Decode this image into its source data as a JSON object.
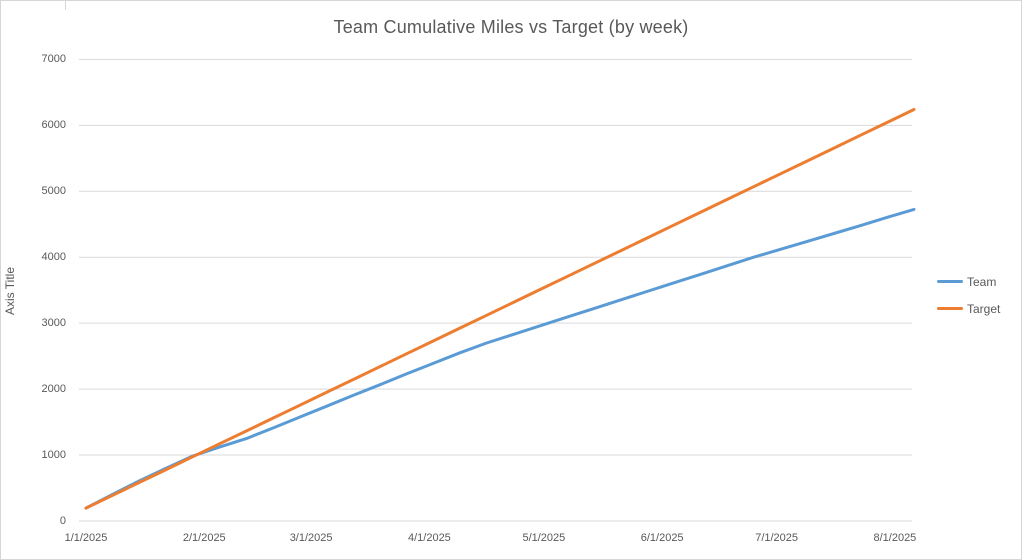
{
  "frame": {
    "background": "#FFFFFF",
    "border_color": "#D6D6D6",
    "gridline_color": "#D9D9D9",
    "text_color": "#595959"
  },
  "chart_data": {
    "type": "line",
    "title": "Team Cumulative Miles vs Target (by week)",
    "xlabel": "",
    "ylabel": "Axis Title",
    "ylim": [
      0,
      7000
    ],
    "y_tick_step": 1000,
    "y_tick_labels": [
      "0",
      "1000",
      "2000",
      "3000",
      "4000",
      "5000",
      "6000",
      "7000"
    ],
    "grid": "horizontal",
    "legend_position": "right",
    "x_tick_labels": [
      "1/1/2025",
      "2/1/2025",
      "3/1/2025",
      "4/1/2025",
      "5/1/2025",
      "6/1/2025",
      "7/1/2025",
      "8/1/2025"
    ],
    "x_tick_days": [
      0,
      31,
      59,
      90,
      120,
      151,
      181,
      212
    ],
    "x_axis_max_day": 217,
    "x_step_days": 7,
    "x": [
      "1/1/2025",
      "1/8/2025",
      "1/15/2025",
      "1/22/2025",
      "1/29/2025",
      "2/5/2025",
      "2/12/2025",
      "2/19/2025",
      "2/26/2025",
      "3/5/2025",
      "3/12/2025",
      "3/19/2025",
      "3/26/2025",
      "4/2/2025",
      "4/9/2025",
      "4/16/2025",
      "4/23/2025",
      "4/30/2025",
      "5/7/2025",
      "5/14/2025",
      "5/21/2025",
      "5/28/2025",
      "6/4/2025",
      "6/11/2025",
      "6/18/2025",
      "6/25/2025",
      "7/2/2025",
      "7/9/2025",
      "7/16/2025",
      "7/23/2025",
      "7/30/2025",
      "8/6/2025"
    ],
    "series": [
      {
        "name": "Team",
        "color": "#5B9BD5",
        "values": [
          195,
          405,
          610,
          800,
          985,
          1120,
          1250,
          1410,
          1575,
          1740,
          1905,
          2065,
          2230,
          2390,
          2550,
          2700,
          2830,
          2960,
          3090,
          3220,
          3350,
          3480,
          3610,
          3740,
          3870,
          4000,
          4120,
          4240,
          4360,
          4480,
          4605,
          4725
        ]
      },
      {
        "name": "Target",
        "color": "#ED7D31",
        "values": [
          195,
          390,
          585,
          780,
          975,
          1170,
          1365,
          1560,
          1755,
          1950,
          2145,
          2340,
          2535,
          2730,
          2925,
          3120,
          3315,
          3510,
          3705,
          3900,
          4095,
          4290,
          4485,
          4680,
          4875,
          5070,
          5265,
          5460,
          5655,
          5850,
          6045,
          6240
        ]
      }
    ]
  }
}
